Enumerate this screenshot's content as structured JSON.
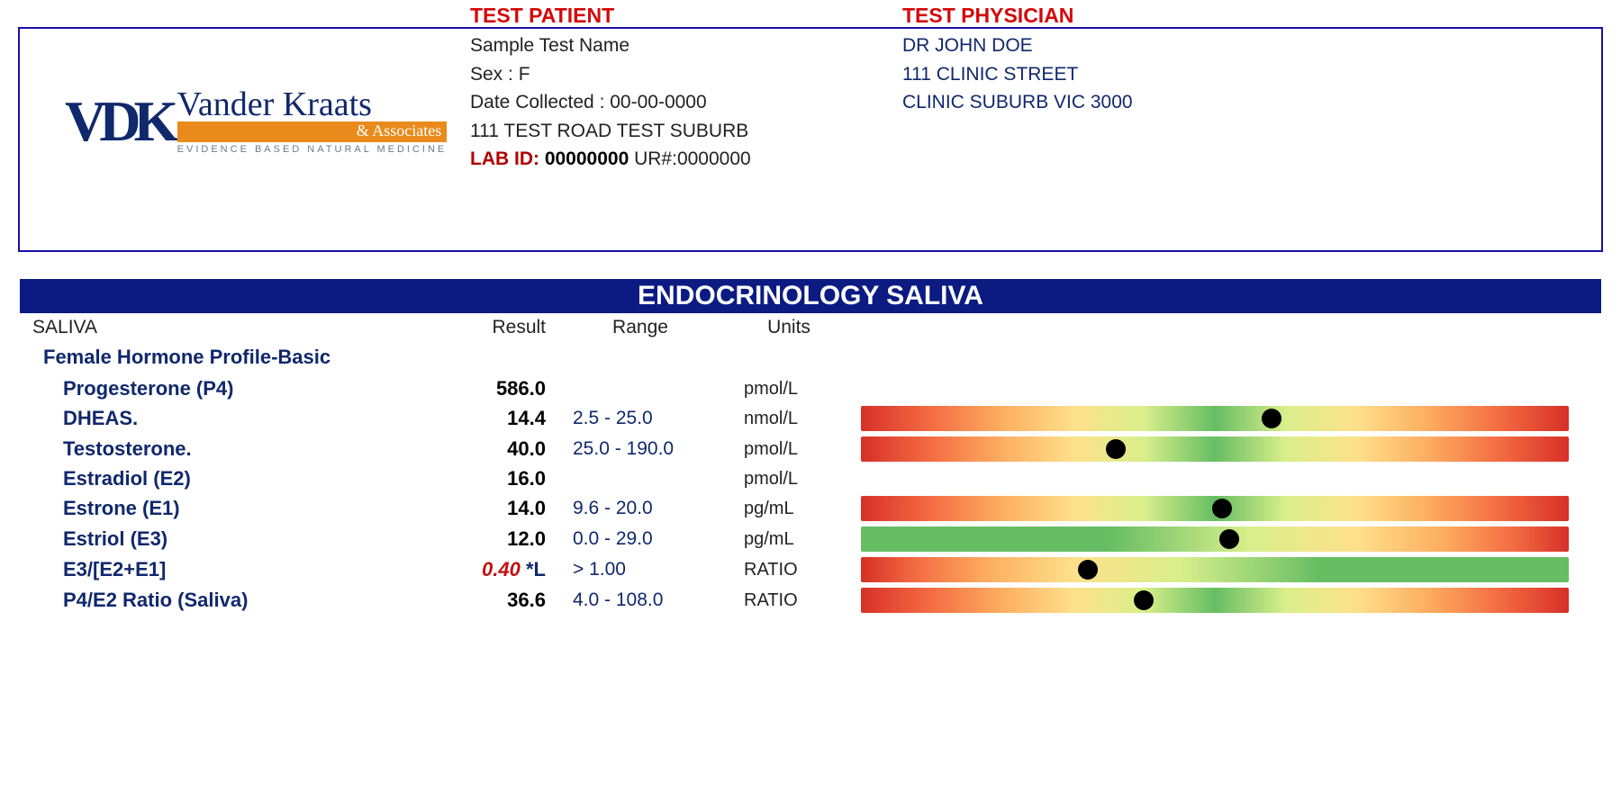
{
  "logo": {
    "initials": "VDK",
    "name": "Vander Kraats",
    "assoc": "& Associates",
    "tagline": "EVIDENCE BASED NATURAL MEDICINE"
  },
  "patient": {
    "title": "TEST PATIENT",
    "name": "Sample Test Name",
    "sex": "Sex :  F",
    "date": "Date Collected :   00-00-0000",
    "address": "111  TEST ROAD TEST SUBURB",
    "lab_id_label": "LAB ID: ",
    "lab_id": "00000000",
    "ur": " UR#:0000000"
  },
  "physician": {
    "title": "TEST PHYSICIAN",
    "name": "DR JOHN DOE",
    "street": "111 CLINIC STREET",
    "suburb": "CLINIC SUBURB VIC 3000"
  },
  "banner": "ENDOCRINOLOGY SALIVA",
  "headers": {
    "sample": "SALIVA",
    "result": "Result",
    "range": "Range",
    "units": "Units"
  },
  "profile_title": "Female Hormone Profile-Basic",
  "tests": [
    {
      "name": "Progesterone (P4)",
      "result": "586.0",
      "range": "",
      "units": "pmol/L",
      "bar": null
    },
    {
      "name": "DHEAS.",
      "result": "14.4",
      "range": "2.5 - 25.0",
      "units": "nmol/L",
      "bar": {
        "gradient": "grad-center",
        "marker_pct": 58
      }
    },
    {
      "name": "Testosterone.",
      "result": "40.0",
      "range": "25.0 - 190.0",
      "units": "pmol/L",
      "bar": {
        "gradient": "grad-center",
        "marker_pct": 36
      }
    },
    {
      "name": "Estradiol (E2)",
      "result": "16.0",
      "range": "",
      "units": "pmol/L",
      "bar": null
    },
    {
      "name": "Estrone (E1)",
      "result": "14.0",
      "range": "9.6 - 20.0",
      "units": "pg/mL",
      "bar": {
        "gradient": "grad-center",
        "marker_pct": 51
      }
    },
    {
      "name": "Estriol (E3)",
      "result": "12.0",
      "range": "0.0 - 29.0",
      "units": "pg/mL",
      "bar": {
        "gradient": "grad-left",
        "marker_pct": 52
      }
    },
    {
      "name": "E3/[E2+E1]",
      "result": "0.40",
      "flag": " *L",
      "flagged": true,
      "range": "> 1.00",
      "units": "RATIO",
      "bar": {
        "gradient": "grad-right",
        "marker_pct": 32
      }
    },
    {
      "name": "P4/E2 Ratio (Saliva)",
      "result": "36.6",
      "range": "4.0 - 108.0",
      "units": "RATIO",
      "bar": {
        "gradient": "grad-center",
        "marker_pct": 40
      }
    }
  ],
  "colors": {
    "navy": "#10286c",
    "red": "#d40808",
    "orange": "#e88b1c",
    "banner_bg": "#0b1b82"
  }
}
